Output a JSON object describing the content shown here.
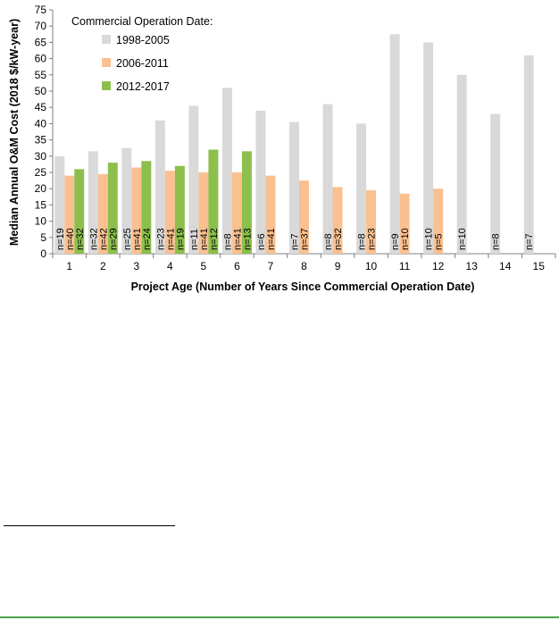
{
  "chart_data": {
    "type": "bar",
    "ylabel": "Median Annual O&M Cost (2018 $/kW-year)",
    "xlabel": "Project Age (Number of Years Since Commercial Operation Date)",
    "ylim": [
      0,
      75
    ],
    "yticks": [
      0,
      5,
      10,
      15,
      20,
      25,
      30,
      35,
      40,
      45,
      50,
      55,
      60,
      65,
      70,
      75
    ],
    "grid": false,
    "legend_position": "top-left",
    "legend_title": "Commercial Operation Date:",
    "categories": [
      "1",
      "2",
      "3",
      "4",
      "5",
      "6",
      "7",
      "8",
      "9",
      "10",
      "11",
      "12",
      "13",
      "14",
      "15"
    ],
    "series": [
      {
        "name": "1998-2005",
        "color": "#d9d9d9",
        "values": [
          30,
          31.5,
          32.5,
          41,
          45.5,
          51,
          44,
          40.5,
          46,
          40,
          67.5,
          65,
          55,
          43,
          61
        ],
        "counts": [
          "n=19",
          "n=32",
          "n=25",
          "n=23",
          "n=11",
          "n=8",
          "n=6",
          "n=7",
          "n=8",
          "n=8",
          "n=9",
          "n=10",
          "n=10",
          "n=8",
          "n=7"
        ]
      },
      {
        "name": "2006-2011",
        "color": "#fac090",
        "values": [
          24,
          24.5,
          26.5,
          25.5,
          25,
          25,
          24,
          22.5,
          20.5,
          19.5,
          18.5,
          20,
          null,
          null,
          null
        ],
        "counts": [
          "n=40",
          "n=42",
          "n=41",
          "n=41",
          "n=41",
          "n=41",
          "n=41",
          "n=37",
          "n=32",
          "n=23",
          "n=10",
          "n=5",
          "",
          "",
          ""
        ]
      },
      {
        "name": "2012-2017",
        "color": "#8cbf4c",
        "values": [
          26,
          28,
          28.5,
          27,
          32,
          31.5,
          null,
          null,
          null,
          null,
          null,
          null,
          null,
          null,
          null
        ],
        "counts": [
          "n=32",
          "n=29",
          "n=24",
          "n=19",
          "n=12",
          "n=13",
          "",
          "",
          "",
          "",
          "",
          "",
          "",
          "",
          ""
        ]
      }
    ]
  }
}
